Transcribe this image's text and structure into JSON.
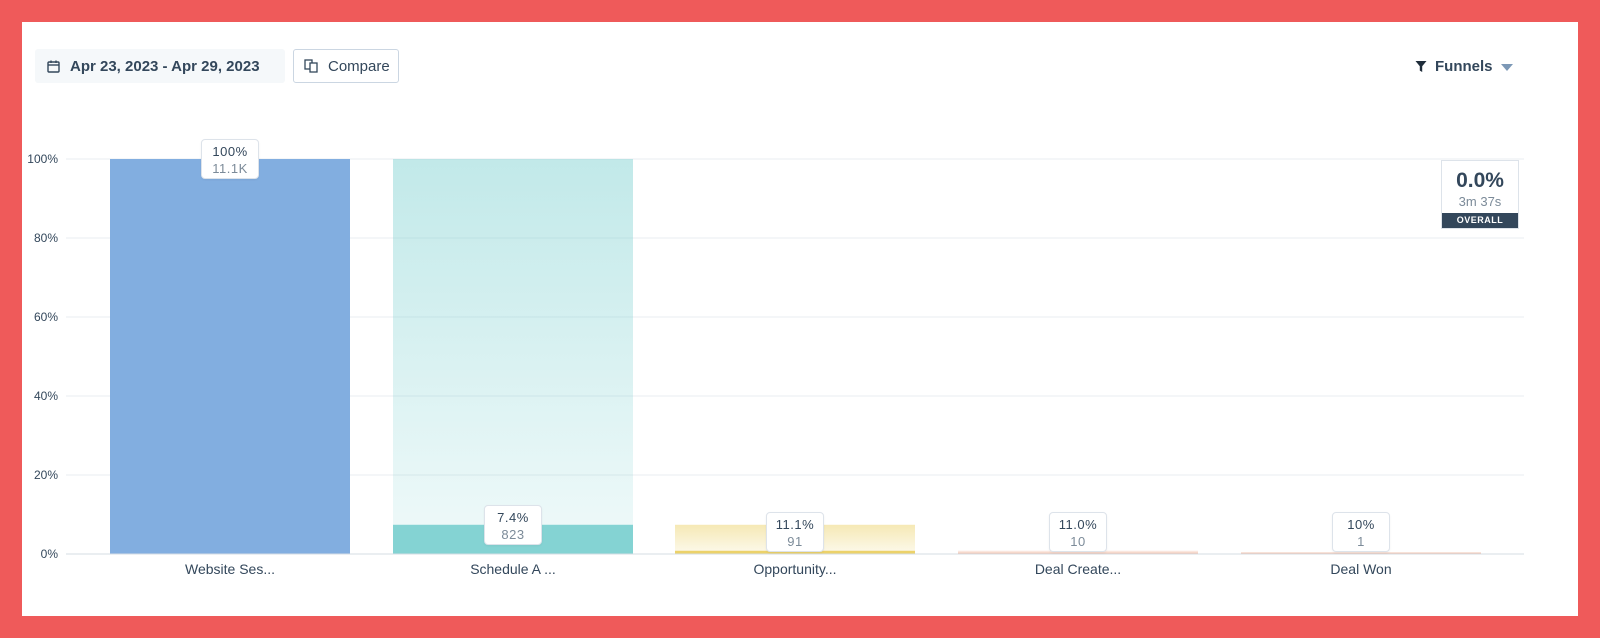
{
  "toolbar": {
    "date_range": "Apr 23, 2023 - Apr 29, 2023",
    "compare_label": "Compare",
    "funnels_label": "Funnels"
  },
  "overall": {
    "rate": "0.0%",
    "time": "3m 37s",
    "label": "OVERALL"
  },
  "colors": {
    "stage1": "#82aee0",
    "stage2": "#84d3d3",
    "stage3": "#ecd26a",
    "stage4": "#f2c4b0",
    "frame": "#ef5a5a"
  },
  "chart_data": {
    "type": "bar",
    "ylim": [
      0,
      100
    ],
    "yticks": [
      "0%",
      "20%",
      "40%",
      "60%",
      "80%",
      "100%"
    ],
    "categories": [
      "Website Ses...",
      "Schedule A ...",
      "Opportunity...",
      "Deal Create...",
      "Deal Won"
    ],
    "values": [
      100,
      7.4,
      0.82,
      0.09,
      0.009
    ],
    "prior_values": [
      100,
      100,
      7.4,
      0.82,
      0.09
    ],
    "labels": [
      {
        "pct": "100%",
        "count": "11.1K"
      },
      {
        "pct": "7.4%",
        "count": "823"
      },
      {
        "pct": "11.1%",
        "count": "91"
      },
      {
        "pct": "11.0%",
        "count": "10"
      },
      {
        "pct": "10%",
        "count": "1"
      }
    ],
    "grid": true
  }
}
